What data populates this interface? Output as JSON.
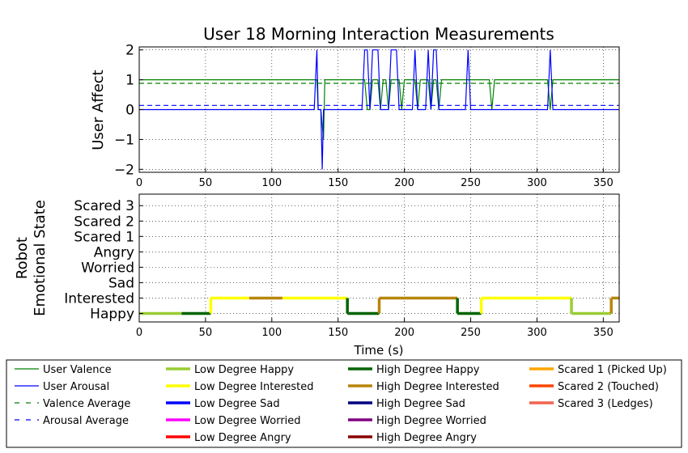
{
  "chart_data": [
    {
      "type": "line",
      "title": "User 18 Morning Interaction Measurements",
      "ylabel": "User Affect",
      "xlabel": "",
      "xlim": [
        0,
        362
      ],
      "ylim": [
        -2.1,
        2.1
      ],
      "xticks": [
        "0",
        "50",
        "100",
        "150",
        "200",
        "250",
        "300",
        "350"
      ],
      "yticks": [
        "−2",
        "−1",
        "0",
        "1",
        "2"
      ],
      "grid": true,
      "series": [
        {
          "name": "User Valence",
          "color": "#008000",
          "style": "solid",
          "points": [
            [
              0,
              1
            ],
            [
              134,
              1
            ],
            [
              135,
              0
            ],
            [
              137,
              0
            ],
            [
              139,
              -1
            ],
            [
              140,
              1
            ],
            [
              170,
              1
            ],
            [
              172,
              0
            ],
            [
              174,
              0
            ],
            [
              176,
              1
            ],
            [
              180,
              1
            ],
            [
              182,
              0
            ],
            [
              184,
              1
            ],
            [
              186,
              1
            ],
            [
              188,
              0
            ],
            [
              190,
              1
            ],
            [
              196,
              1
            ],
            [
              198,
              0
            ],
            [
              200,
              1
            ],
            [
              208,
              1
            ],
            [
              210,
              0
            ],
            [
              212,
              1
            ],
            [
              218,
              1
            ],
            [
              220,
              0
            ],
            [
              222,
              1
            ],
            [
              224,
              1
            ],
            [
              226,
              0
            ],
            [
              228,
              1
            ],
            [
              264,
              1
            ],
            [
              266,
              0
            ],
            [
              268,
              1
            ],
            [
              308,
              1
            ],
            [
              310,
              0
            ],
            [
              312,
              1
            ],
            [
              362,
              1
            ]
          ]
        },
        {
          "name": "User Arousal",
          "color": "#0000ff",
          "style": "solid",
          "points": [
            [
              0,
              0
            ],
            [
              132,
              0
            ],
            [
              134,
              2
            ],
            [
              135,
              0
            ],
            [
              137,
              0
            ],
            [
              138,
              -2
            ],
            [
              139,
              0
            ],
            [
              168,
              0
            ],
            [
              170,
              2
            ],
            [
              172,
              2
            ],
            [
              174,
              0
            ],
            [
              176,
              2
            ],
            [
              180,
              2
            ],
            [
              182,
              0
            ],
            [
              184,
              0
            ],
            [
              186,
              0
            ],
            [
              188,
              0
            ],
            [
              190,
              2
            ],
            [
              194,
              2
            ],
            [
              196,
              0
            ],
            [
              206,
              0
            ],
            [
              208,
              2
            ],
            [
              210,
              0
            ],
            [
              216,
              0
            ],
            [
              218,
              2
            ],
            [
              220,
              0
            ],
            [
              222,
              2
            ],
            [
              224,
              2
            ],
            [
              226,
              0
            ],
            [
              246,
              0
            ],
            [
              248,
              2
            ],
            [
              250,
              0
            ],
            [
              308,
              0
            ],
            [
              310,
              2
            ],
            [
              312,
              0
            ],
            [
              362,
              0
            ]
          ]
        },
        {
          "name": "Valence Average",
          "color": "#008000",
          "style": "dashed",
          "points": [
            [
              0,
              0.88
            ],
            [
              362,
              0.88
            ]
          ]
        },
        {
          "name": "Arousal Average",
          "color": "#0000ff",
          "style": "dashed",
          "points": [
            [
              0,
              0.14
            ],
            [
              362,
              0.14
            ]
          ]
        }
      ]
    },
    {
      "type": "line",
      "title": "",
      "xlabel": "Time (s)",
      "ylabel": [
        "Robot",
        "Emotional State"
      ],
      "xlim": [
        0,
        362
      ],
      "xticks": [
        "0",
        "50",
        "100",
        "150",
        "200",
        "250",
        "300",
        "350"
      ],
      "categories": [
        "Happy",
        "Interested",
        "Sad",
        "Worried",
        "Angry",
        "Scared 1",
        "Scared 2",
        "Scared 3"
      ],
      "grid": true,
      "segments": [
        {
          "state": "Happy",
          "degree": "Low Degree Happy",
          "x": [
            0,
            32
          ]
        },
        {
          "state": "Happy",
          "degree": "High Degree Happy",
          "x": [
            32,
            54
          ]
        },
        {
          "state": "Interested",
          "degree": "Low Degree Interested",
          "x": [
            54,
            83
          ]
        },
        {
          "state": "Interested",
          "degree": "High Degree Interested",
          "x": [
            83,
            108
          ]
        },
        {
          "state": "Interested",
          "degree": "Low Degree Interested",
          "x": [
            108,
            157
          ]
        },
        {
          "state": "Happy",
          "degree": "High Degree Happy",
          "x": [
            157,
            181
          ]
        },
        {
          "state": "Interested",
          "degree": "High Degree Interested",
          "x": [
            181,
            240
          ]
        },
        {
          "state": "Happy",
          "degree": "High Degree Happy",
          "x": [
            240,
            258
          ]
        },
        {
          "state": "Interested",
          "degree": "Low Degree Interested",
          "x": [
            258,
            326
          ]
        },
        {
          "state": "Happy",
          "degree": "Low Degree Happy",
          "x": [
            326,
            356
          ]
        },
        {
          "state": "Interested",
          "degree": "High Degree Interested",
          "x": [
            356,
            362
          ]
        }
      ]
    }
  ],
  "legend": {
    "placement": "bottom",
    "columns": [
      [
        {
          "label": "User Valence",
          "color": "#008000",
          "style": "solid"
        },
        {
          "label": "User Arousal",
          "color": "#0000ff",
          "style": "solid"
        },
        {
          "label": "Valence Average",
          "color": "#008000",
          "style": "dashed"
        },
        {
          "label": "Arousal Average",
          "color": "#0000ff",
          "style": "dashed"
        }
      ],
      [
        {
          "label": "Low Degree Happy",
          "color": "#9acd32",
          "style": "thick"
        },
        {
          "label": "Low Degree Interested",
          "color": "#ffff00",
          "style": "thick"
        },
        {
          "label": "Low Degree Sad",
          "color": "#0000ff",
          "style": "thick"
        },
        {
          "label": "Low Degree Worried",
          "color": "#ff00ff",
          "style": "thick"
        },
        {
          "label": "Low Degree Angry",
          "color": "#ff0000",
          "style": "thick"
        }
      ],
      [
        {
          "label": "High Degree Happy",
          "color": "#006400",
          "style": "thick"
        },
        {
          "label": "High Degree Interested",
          "color": "#b8860b",
          "style": "thick"
        },
        {
          "label": "High Degree Sad",
          "color": "#000080",
          "style": "thick"
        },
        {
          "label": "High Degree Worried",
          "color": "#800080",
          "style": "thick"
        },
        {
          "label": "High Degree Angry",
          "color": "#8b0000",
          "style": "thick"
        }
      ],
      [
        {
          "label": "Scared 1 (Picked Up)",
          "color": "#ffa500",
          "style": "thick"
        },
        {
          "label": "Scared 2 (Touched)",
          "color": "#ff4500",
          "style": "thick"
        },
        {
          "label": "Scared 3 (Ledges)",
          "color": "#f0644f",
          "style": "thick"
        }
      ]
    ]
  }
}
